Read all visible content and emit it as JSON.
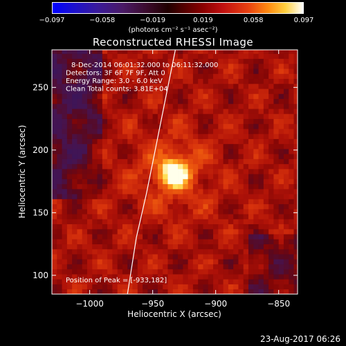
{
  "chart_data": {
    "type": "heatmap",
    "title": "Reconstructed RHESSI Image",
    "xlabel": "Heliocentric X (arcsec)",
    "ylabel": "Heliocentric Y (arcsec)",
    "xlim": [
      -1030,
      -835
    ],
    "ylim": [
      85,
      280
    ],
    "x_ticks": [
      -1000,
      -950,
      -900,
      -850
    ],
    "y_ticks": [
      100,
      150,
      200,
      250
    ],
    "x_tick_labels": [
      "−1000",
      "−950",
      "−900",
      "−850"
    ],
    "y_tick_labels": [
      "100",
      "150",
      "200",
      "250"
    ],
    "colorbar": {
      "min": -0.097,
      "max": 0.097,
      "tick_labels": [
        "−0.097",
        "−0.058",
        "−0.019",
        "0.019",
        "0.058",
        "0.097"
      ],
      "unit": "(photons cm⁻² s⁻¹ asec⁻²)"
    },
    "annotations": [
      "8-Dec-2014 06:01:32.000 to 06:11:32.000",
      "Detectors: 3F 6F 7F 9F, Att 0",
      "Energy Range: 3.0 - 6.0 keV",
      "Clean     Total counts: 3.81E+04"
    ],
    "peak_label": "Position of Peak = [-933,182]",
    "peak": {
      "x": -933,
      "y": 182
    },
    "limb_curve": [
      [
        -970,
        85
      ],
      [
        -963,
        130
      ],
      [
        -955,
        165
      ],
      [
        -948,
        200
      ],
      [
        -940,
        240
      ],
      [
        -932,
        280
      ]
    ],
    "grid": false
  },
  "footer": {
    "timestamp": "23-Aug-2017 06:26"
  }
}
